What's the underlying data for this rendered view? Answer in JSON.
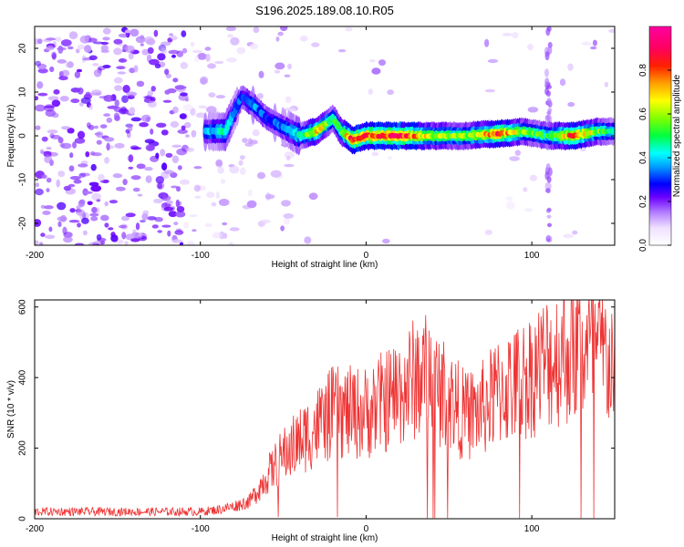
{
  "chart_data": [
    {
      "type": "heatmap",
      "title": "S196.2025.189.08.10.R05",
      "xlabel": "Height of straight line (km)",
      "ylabel": "Frequency (Hz)",
      "xlim": [
        -200,
        150
      ],
      "ylim": [
        -25,
        25
      ],
      "xticks": [
        -200,
        -100,
        0,
        100
      ],
      "yticks": [
        -20,
        -10,
        0,
        10,
        20
      ],
      "colorbar": {
        "label": "Normalized spectral amplitude",
        "range": [
          0,
          1
        ],
        "ticks": [
          0.0,
          0.2,
          0.4,
          0.6,
          0.8
        ],
        "tick_labels": [
          "0.0",
          "0.2",
          "0.4",
          "0.6",
          "0.8"
        ]
      },
      "ridge": {
        "points": [
          {
            "x": -97,
            "y": 1,
            "v": 0.35
          },
          {
            "x": -85,
            "y": 1,
            "v": 0.45
          },
          {
            "x": -75,
            "y": 9,
            "v": 0.3
          },
          {
            "x": -68,
            "y": 7,
            "v": 0.35
          },
          {
            "x": -60,
            "y": 4,
            "v": 0.3
          },
          {
            "x": -50,
            "y": 2,
            "v": 0.35
          },
          {
            "x": -40,
            "y": 0,
            "v": 0.45
          },
          {
            "x": -30,
            "y": 1,
            "v": 0.7
          },
          {
            "x": -20,
            "y": 4,
            "v": 0.5
          },
          {
            "x": -15,
            "y": 1,
            "v": 0.55
          },
          {
            "x": -8,
            "y": -1,
            "v": 0.85
          },
          {
            "x": 0,
            "y": 0,
            "v": 0.8
          },
          {
            "x": 20,
            "y": 0,
            "v": 0.85
          },
          {
            "x": 40,
            "y": 0,
            "v": 0.6
          },
          {
            "x": 60,
            "y": 0,
            "v": 0.55
          },
          {
            "x": 80,
            "y": 0.5,
            "v": 0.8
          },
          {
            "x": 95,
            "y": 1,
            "v": 0.55
          },
          {
            "x": 110,
            "y": 0,
            "v": 0.5
          },
          {
            "x": 125,
            "y": 0,
            "v": 0.8
          },
          {
            "x": 140,
            "y": 1,
            "v": 0.55
          },
          {
            "x": 150,
            "y": 1,
            "v": 0.45
          }
        ]
      }
    },
    {
      "type": "line",
      "title": "",
      "xlabel": "Height of straight line (km)",
      "ylabel": "SNR (10 * v/v)",
      "xlim": [
        -200,
        150
      ],
      "ylim": [
        0,
        620
      ],
      "xticks": [
        -200,
        -100,
        0,
        100
      ],
      "yticks": [
        0,
        200,
        400,
        600
      ],
      "color": "#ee3333",
      "series": [
        {
          "x": [
            -200,
            -180,
            -160,
            -140,
            -120,
            -100,
            -90,
            -80,
            -70,
            -60,
            -50,
            -40,
            -30,
            -20,
            -10,
            0,
            10,
            20,
            30,
            35,
            40,
            50,
            60,
            70,
            80,
            90,
            100,
            110,
            120,
            130,
            140,
            150
          ],
          "values": [
            20,
            20,
            20,
            20,
            20,
            20,
            25,
            35,
            50,
            120,
            180,
            220,
            260,
            300,
            300,
            300,
            330,
            360,
            400,
            410,
            390,
            340,
            290,
            310,
            360,
            380,
            410,
            450,
            470,
            480,
            470,
            440
          ]
        }
      ]
    }
  ]
}
